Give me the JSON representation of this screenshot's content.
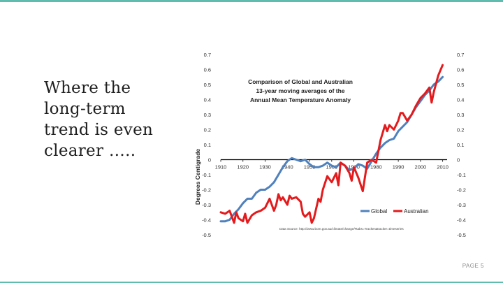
{
  "slide": {
    "heading_lines": [
      "Where the",
      "long-term",
      "trend is even",
      "clearer ….."
    ],
    "page_label": "PAGE 5"
  },
  "colors": {
    "accent": "#5fbcae",
    "global": "#4f81bd",
    "australian": "#e41a1c"
  },
  "chart_data": {
    "type": "line",
    "title_lines": [
      "Comparison of Global and Australian",
      "13-year moving averages of the",
      "Annual  Mean Temperature Anomaly"
    ],
    "ylabel": "Degrees Centigrade",
    "xlabel": "",
    "xlim": [
      1910,
      2012
    ],
    "ylim": [
      -0.5,
      0.7
    ],
    "x_ticks": [
      1910,
      1920,
      1930,
      1940,
      1950,
      1960,
      1970,
      1980,
      1990,
      2000,
      2010
    ],
    "y_ticks": [
      0.7,
      0.6,
      0.5,
      0.4,
      0.3,
      0.2,
      0.1,
      0,
      -0.1,
      -0.2,
      -0.3,
      -0.4,
      -0.5
    ],
    "secondary_y_axis": true,
    "grid": false,
    "legend_position": "bottom-right",
    "source_note": "Data Source: http://www.bom.gov.au/climate/change/#tabs=Tracker&tracker=timeseries",
    "series": [
      {
        "name": "Global",
        "x": [
          1910,
          1912,
          1914,
          1916,
          1918,
          1920,
          1922,
          1924,
          1926,
          1928,
          1930,
          1932,
          1934,
          1936,
          1938,
          1940,
          1942,
          1944,
          1946,
          1948,
          1950,
          1952,
          1954,
          1956,
          1958,
          1960,
          1962,
          1964,
          1966,
          1968,
          1970,
          1972,
          1974,
          1976,
          1978,
          1980,
          1982,
          1984,
          1986,
          1988,
          1990,
          1992,
          1994,
          1996,
          1998,
          2000,
          2002,
          2004,
          2006,
          2008,
          2010
        ],
        "values": [
          -0.41,
          -0.41,
          -0.4,
          -0.36,
          -0.33,
          -0.29,
          -0.26,
          -0.26,
          -0.22,
          -0.2,
          -0.2,
          -0.18,
          -0.15,
          -0.1,
          -0.05,
          -0.01,
          0.01,
          0.0,
          -0.01,
          0.0,
          -0.03,
          -0.05,
          -0.05,
          -0.04,
          -0.02,
          -0.04,
          -0.05,
          -0.02,
          -0.04,
          -0.07,
          -0.06,
          -0.03,
          -0.04,
          -0.06,
          -0.01,
          0.04,
          0.08,
          0.11,
          0.13,
          0.14,
          0.19,
          0.22,
          0.25,
          0.3,
          0.35,
          0.39,
          0.43,
          0.46,
          0.5,
          0.52,
          0.55
        ]
      },
      {
        "name": "Australian",
        "x": [
          1910,
          1912,
          1914,
          1915,
          1916,
          1917,
          1918,
          1920,
          1921,
          1922,
          1924,
          1926,
          1928,
          1930,
          1932,
          1934,
          1935,
          1936,
          1937,
          1938,
          1940,
          1941,
          1942,
          1944,
          1946,
          1947,
          1948,
          1950,
          1951,
          1952,
          1954,
          1955,
          1956,
          1958,
          1960,
          1962,
          1963,
          1964,
          1966,
          1968,
          1969,
          1970,
          1972,
          1974,
          1976,
          1978,
          1980,
          1982,
          1984,
          1985,
          1986,
          1988,
          1990,
          1991,
          1992,
          1994,
          1996,
          1998,
          2000,
          2002,
          2004,
          2005,
          2006,
          2008,
          2010
        ],
        "values": [
          -0.35,
          -0.36,
          -0.34,
          -0.38,
          -0.42,
          -0.35,
          -0.39,
          -0.41,
          -0.36,
          -0.42,
          -0.37,
          -0.35,
          -0.34,
          -0.32,
          -0.26,
          -0.34,
          -0.3,
          -0.23,
          -0.27,
          -0.25,
          -0.3,
          -0.24,
          -0.26,
          -0.25,
          -0.28,
          -0.36,
          -0.38,
          -0.35,
          -0.42,
          -0.39,
          -0.26,
          -0.28,
          -0.2,
          -0.11,
          -0.15,
          -0.09,
          -0.17,
          -0.02,
          -0.04,
          -0.09,
          -0.14,
          -0.05,
          -0.12,
          -0.21,
          -0.02,
          0.0,
          -0.02,
          0.13,
          0.23,
          0.19,
          0.23,
          0.2,
          0.26,
          0.31,
          0.31,
          0.26,
          0.3,
          0.36,
          0.41,
          0.44,
          0.48,
          0.38,
          0.45,
          0.56,
          0.63
        ]
      }
    ]
  }
}
